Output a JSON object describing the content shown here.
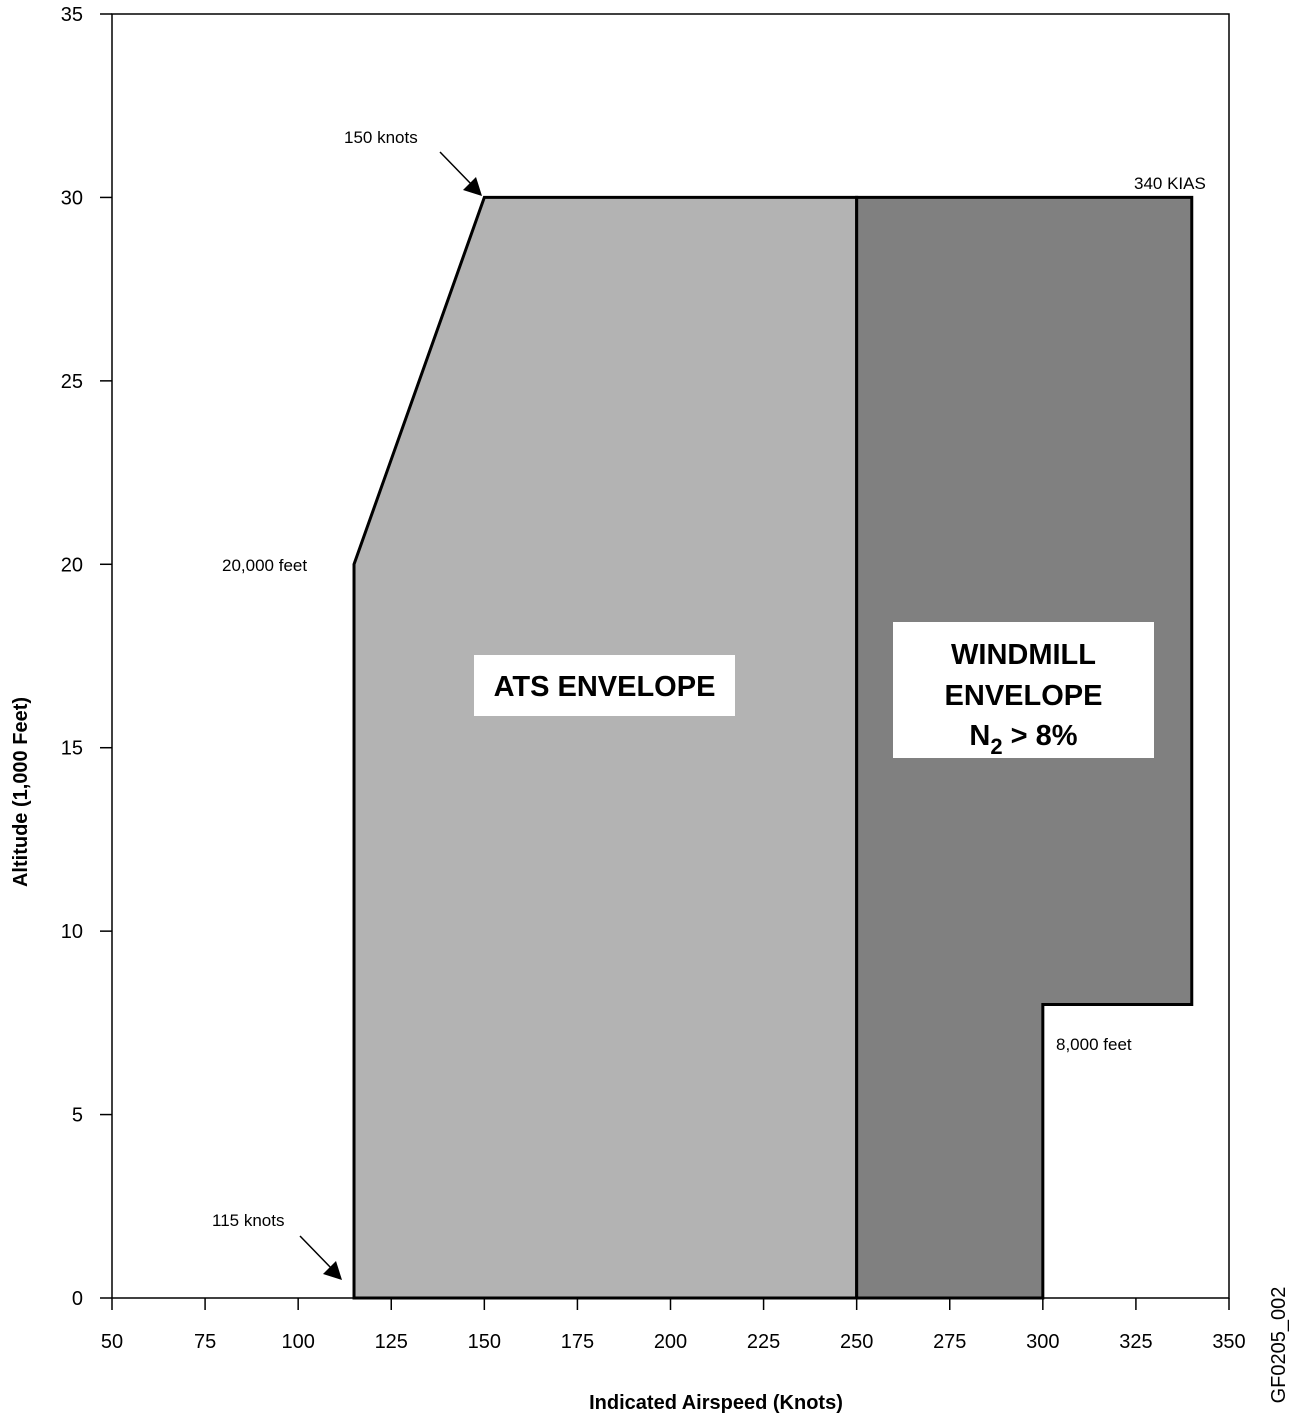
{
  "chart_data": {
    "type": "area",
    "xlabel": "Indicated Airspeed (Knots)",
    "ylabel": "Altitude (1,000 Feet)",
    "xlim": [
      50,
      350
    ],
    "ylim": [
      0,
      35
    ],
    "x_ticks": [
      50,
      75,
      100,
      125,
      150,
      175,
      200,
      225,
      250,
      275,
      300,
      325,
      350
    ],
    "y_ticks": [
      0,
      5,
      10,
      15,
      20,
      25,
      30,
      35
    ],
    "grid": false,
    "regions": [
      {
        "name": "ATS ENVELOPE",
        "color": "#b3b3b3",
        "points": [
          [
            115,
            0
          ],
          [
            115,
            20
          ],
          [
            150,
            30
          ],
          [
            250,
            30
          ],
          [
            250,
            0
          ]
        ]
      },
      {
        "name": "WINDMILL ENVELOPE",
        "color": "#808080",
        "points": [
          [
            250,
            0
          ],
          [
            250,
            30
          ],
          [
            340,
            30
          ],
          [
            340,
            8
          ],
          [
            300,
            8
          ],
          [
            300,
            0
          ]
        ]
      }
    ],
    "labels": {
      "ats": "ATS ENVELOPE",
      "windmill_line1": "WINDMILL",
      "windmill_line2": "ENVELOPE",
      "windmill_line3_main": "N",
      "windmill_line3_sub": "2",
      "windmill_line3_rest": " > 8%"
    },
    "annotations": {
      "a150": "150 knots",
      "a340": "340 KIAS",
      "a20000": "20,000 feet",
      "a8000": "8,000 feet",
      "a115": "115 knots"
    },
    "figure_id": "GF0205_002"
  }
}
